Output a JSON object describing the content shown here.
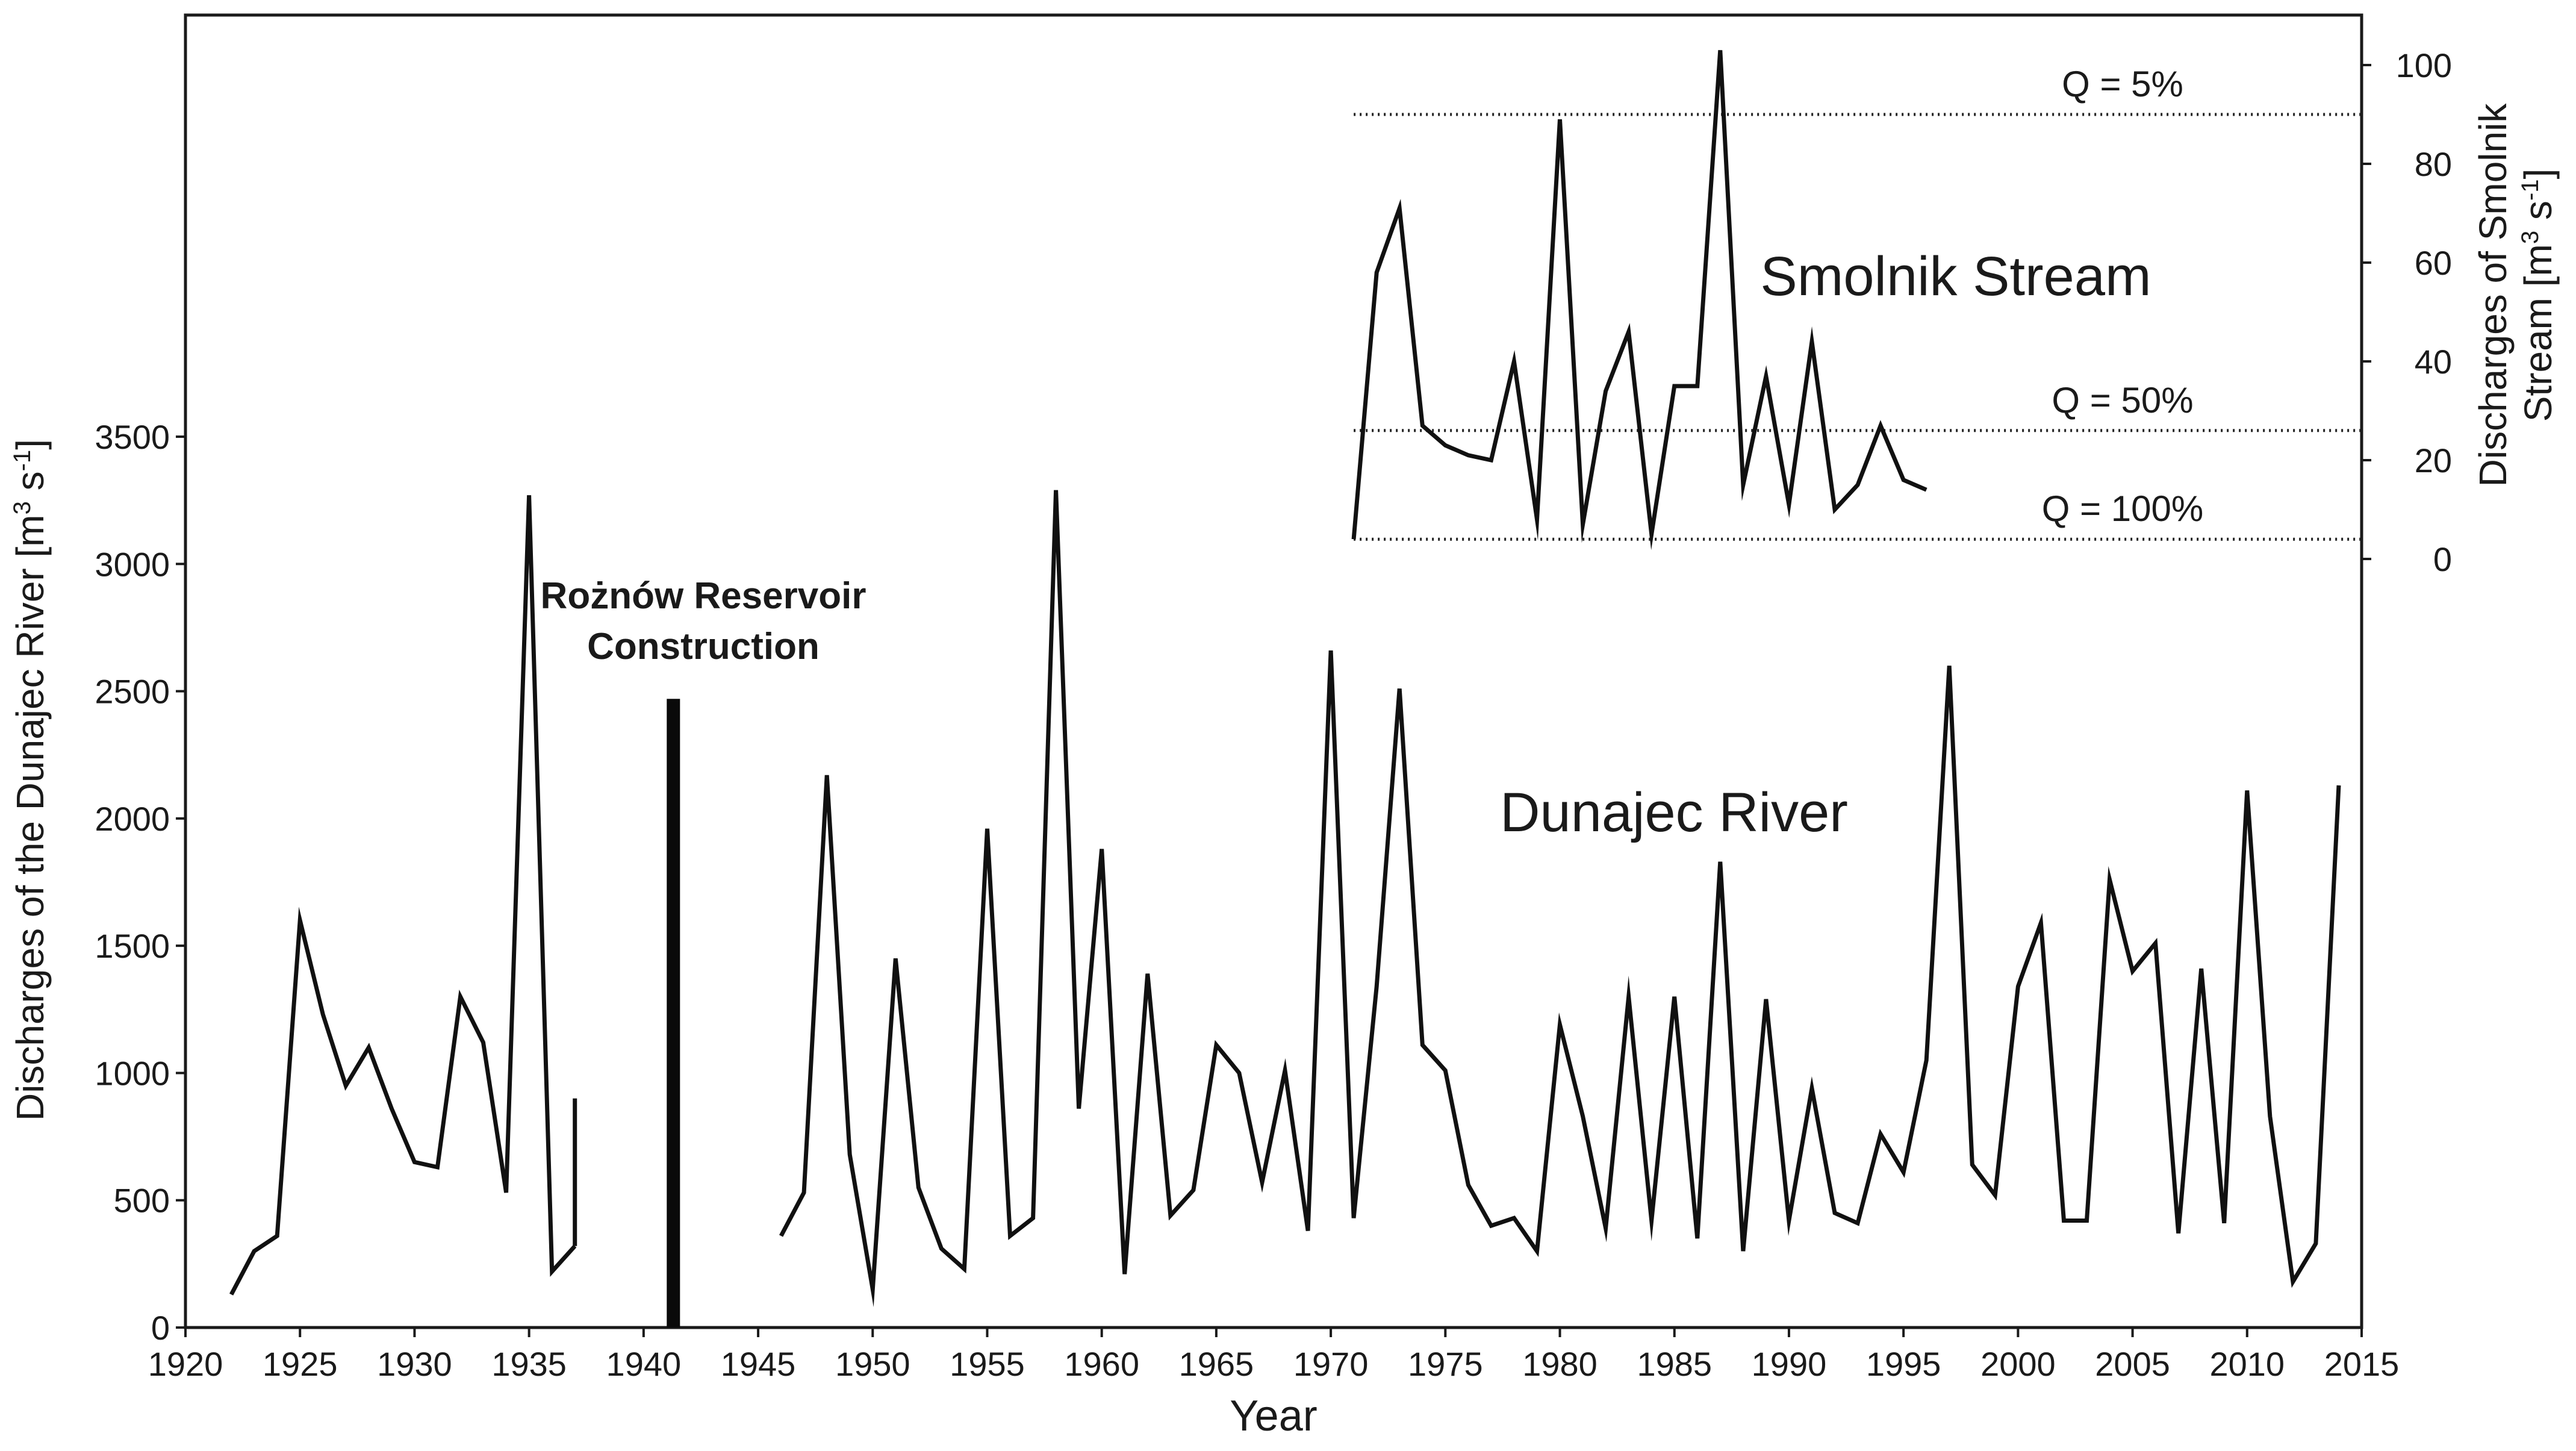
{
  "chart_data": {
    "type": "line",
    "xlabel": "Year",
    "x_ticks": [
      1920,
      1925,
      1930,
      1935,
      1940,
      1945,
      1950,
      1955,
      1960,
      1965,
      1970,
      1975,
      1980,
      1985,
      1990,
      1995,
      2000,
      2005,
      2010,
      2015
    ],
    "xlim": [
      1920,
      2015
    ],
    "y_left": {
      "label_main": "Discharges of the Dunajec River [m",
      "label_sup3": "3",
      "label_mid": " s",
      "label_supm1": "-1",
      "label_end": "]",
      "ticks": [
        0,
        500,
        1000,
        1500,
        2000,
        2500,
        3000,
        3500
      ],
      "ylim": [
        0,
        4000
      ]
    },
    "y_right": {
      "label_line1": "Discharges of Smolnik",
      "label_line2_main": "Stream [m",
      "label_sup3": "3",
      "label_mid": " s",
      "label_supm1": "-1",
      "label_end": "]",
      "ticks": [
        0,
        20,
        40,
        60,
        80,
        100
      ],
      "ylim": [
        0,
        100
      ]
    },
    "series": [
      {
        "name": "Dunajec River",
        "axis": "left",
        "segments": [
          {
            "x": [
              1922,
              1923,
              1924,
              1925,
              1926,
              1927,
              1928,
              1929,
              1930,
              1931,
              1932,
              1933,
              1934,
              1935,
              1936,
              1937
            ],
            "y": [
              130,
              300,
              360,
              1600,
              1230,
              950,
              1100,
              860,
              650,
              630,
              1300,
              1120,
              530,
              3270,
              220,
              320
            ]
          },
          {
            "x": [
              1937
            ],
            "y": [
              900
            ]
          },
          {
            "x": [
              1946,
              1947,
              1948,
              1949,
              1950,
              1951,
              1952,
              1953,
              1954,
              1955,
              1956,
              1957,
              1958,
              1959,
              1960,
              1961,
              1962,
              1963,
              1964,
              1965,
              1966,
              1967,
              1968,
              1969,
              1970,
              1971,
              1972,
              1973,
              1974,
              1975,
              1976,
              1977,
              1978,
              1979,
              1980,
              1981,
              1982,
              1983,
              1984,
              1985,
              1986,
              1987,
              1988,
              1989,
              1990,
              1991,
              1992,
              1993,
              1994,
              1995,
              1996,
              1997,
              1998,
              1999,
              2000,
              2001,
              2002,
              2003,
              2004,
              2005,
              2006,
              2007,
              2008,
              2009,
              2010,
              2011,
              2012,
              2013,
              2014
            ],
            "y": [
              360,
              530,
              2170,
              680,
              150,
              1450,
              550,
              310,
              230,
              1960,
              360,
              430,
              3290,
              860,
              1880,
              210,
              1390,
              440,
              540,
              1110,
              1000,
              570,
              1010,
              380,
              2660,
              430,
              1340,
              2510,
              1110,
              1010,
              560,
              400,
              430,
              300,
              1190,
              830,
              390,
              1300,
              420,
              1300,
              350,
              1830,
              300,
              1290,
              420,
              940,
              450,
              410,
              760,
              610,
              1050,
              2600,
              640,
              520,
              1340,
              1590,
              420,
              420,
              1760,
              1400,
              1510,
              370,
              1410,
              410,
              2110,
              830,
              180,
              330,
              2130
            ]
          }
        ]
      },
      {
        "name": "Smolnik Stream",
        "axis": "right",
        "segments": [
          {
            "x": [
              1971,
              1972,
              1973,
              1974,
              1975,
              1976,
              1977,
              1978,
              1979,
              1980,
              1981,
              1982,
              1983,
              1984,
              1985,
              1986,
              1987,
              1988,
              1989,
              1990,
              1991,
              1992,
              1993,
              1994,
              1995,
              1996
            ],
            "y": [
              4,
              58,
              71,
              27,
              23,
              21,
              20,
              40,
              8,
              89,
              7,
              34,
              46,
              5,
              35,
              35,
              103,
              15,
              37,
              11,
              44,
              10,
              15,
              27,
              16,
              14
            ]
          }
        ]
      }
    ],
    "reference_lines": [
      {
        "label": "Q = 5%",
        "value": 90
      },
      {
        "label": "Q = 50%",
        "value": 26
      },
      {
        "label": "Q = 100%",
        "value": 4
      }
    ],
    "annotations": {
      "reservoir_line1": "Rożnów Reservoir",
      "reservoir_line2": "Construction",
      "reservoir_x": 1941.3,
      "reservoir_top": 2470,
      "dunajec_label": "Dunajec River",
      "smolnik_label": "Smolnik Stream"
    },
    "colors": {
      "line": "#111111",
      "axis": "#1a1a1a",
      "reference": "#222222"
    }
  }
}
